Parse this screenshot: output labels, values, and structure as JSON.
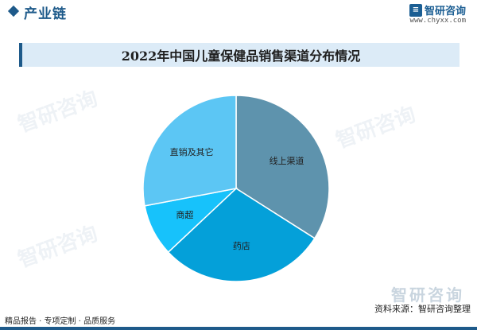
{
  "header": {
    "section_title": "产业链",
    "brand_name": "智研咨询",
    "brand_url": "www.chyxx.com"
  },
  "chart_data": {
    "type": "pie",
    "title": "2022年中国儿童保健品销售渠道分布情况",
    "slices": [
      {
        "label": "线上渠道",
        "value": 34,
        "color": "#5e93ad"
      },
      {
        "label": "药店",
        "value": 29,
        "color": "#04a0d9"
      },
      {
        "label": "商超",
        "value": 9,
        "color": "#17c2fb"
      },
      {
        "label": "直销及其它",
        "value": 28,
        "color": "#5cc6f4"
      }
    ],
    "start_angle_deg": 0,
    "direction": "clockwise"
  },
  "footer": {
    "left_text": "精品报告 · 专项定制 · 品质服务",
    "source_text": "资料来源：智研咨询整理",
    "watermark_text": "智研咨询"
  }
}
